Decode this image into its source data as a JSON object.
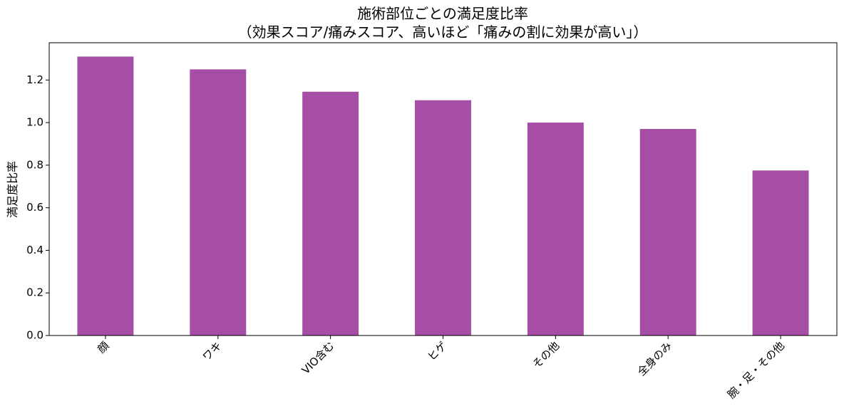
{
  "chart_data": {
    "type": "bar",
    "title_line1": "施術部位ごとの満足度比率",
    "title_line2": "（効果スコア/痛みスコア、高いほど「痛みの割に効果が高い」）",
    "xlabel": "",
    "ylabel": "満足度比率",
    "categories": [
      "顔",
      "ワキ",
      "VIO含む",
      "ヒゲ",
      "その他",
      "全身のみ",
      "腕・足・その他"
    ],
    "values": [
      1.31,
      1.25,
      1.145,
      1.105,
      1.0,
      0.97,
      0.775
    ],
    "ylim": [
      0,
      1.375
    ],
    "yticks": [
      "0.0",
      "0.2",
      "0.4",
      "0.6",
      "0.8",
      "1.0",
      "1.2"
    ],
    "bar_color": "#a64ea5",
    "grid": false,
    "legend": "none"
  }
}
